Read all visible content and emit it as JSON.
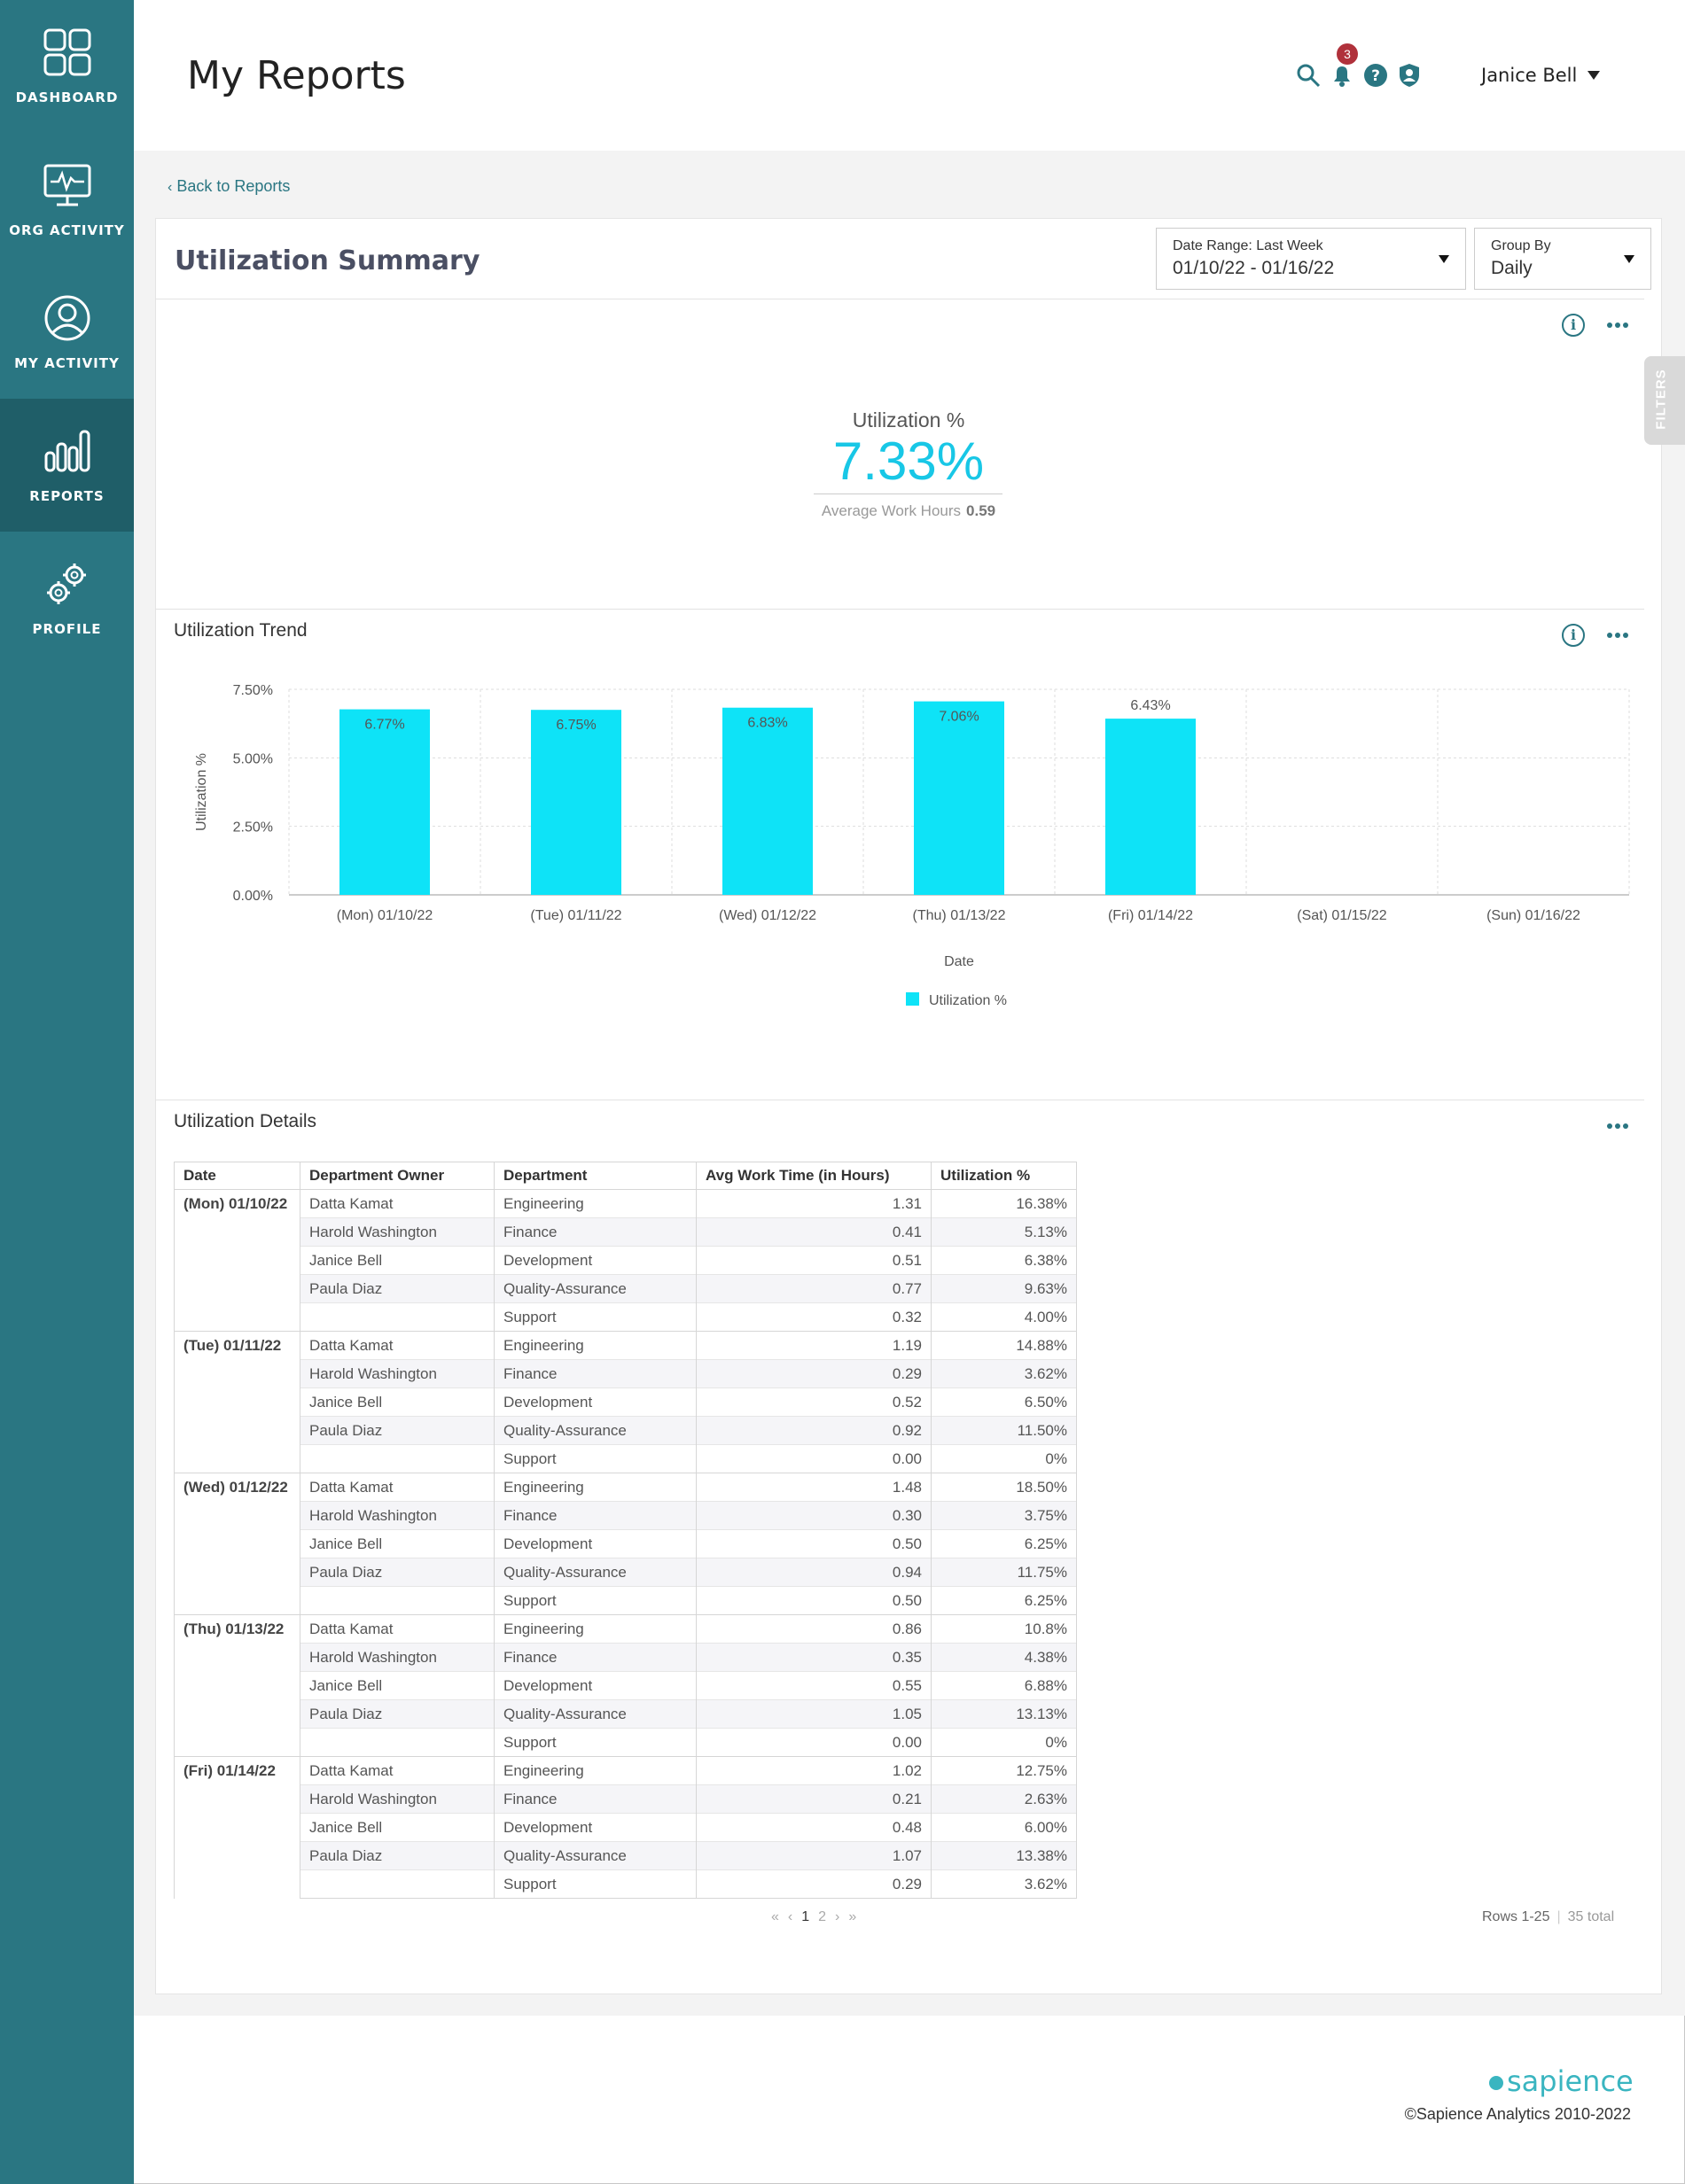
{
  "sidebar": {
    "items": [
      {
        "label": "DASHBOARD",
        "icon": "dashboard-icon"
      },
      {
        "label": "ORG ACTIVITY",
        "icon": "monitor-activity-icon"
      },
      {
        "label": "MY ACTIVITY",
        "icon": "user-icon"
      },
      {
        "label": "REPORTS",
        "icon": "bar-chart-icon",
        "active": true
      },
      {
        "label": "PROFILE",
        "icon": "gears-icon"
      }
    ]
  },
  "header": {
    "title": "My Reports",
    "notification_count": "3",
    "user_name": "Janice Bell",
    "icons": [
      "search-icon",
      "bell-icon",
      "help-icon",
      "shield-icon"
    ]
  },
  "nav": {
    "back_label": "Back to Reports"
  },
  "summary": {
    "title": "Utilization Summary",
    "date_range_label": "Date Range: Last Week",
    "date_range_value": "01/10/22 - 01/16/22",
    "group_by_label": "Group By",
    "group_by_value": "Daily",
    "filters_label": "FILTERS",
    "kpi_label": "Utilization %",
    "kpi_value": "7.33%",
    "kpi_sub_label": "Average Work Hours",
    "kpi_sub_value": "0.59"
  },
  "trend": {
    "title": "Utilization Trend"
  },
  "chart_data": {
    "type": "bar",
    "categories": [
      "(Mon) 01/10/22",
      "(Tue) 01/11/22",
      "(Wed) 01/12/22",
      "(Thu) 01/13/22",
      "(Fri) 01/14/22",
      "(Sat) 01/15/22",
      "(Sun) 01/16/22"
    ],
    "values": [
      6.77,
      6.75,
      6.83,
      7.06,
      6.43,
      null,
      null
    ],
    "data_labels": [
      "6.77%",
      "6.75%",
      "6.83%",
      "7.06%",
      "6.43%",
      "",
      ""
    ],
    "yticks": [
      "0.00%",
      "2.50%",
      "5.00%",
      "7.50%"
    ],
    "ylim": [
      0,
      7.5
    ],
    "xlabel": "Date",
    "ylabel": "Utilization %",
    "legend": [
      "Utilization %"
    ],
    "legend_position": "bottom",
    "grid": true,
    "bar_color": "#0ee3f7"
  },
  "details": {
    "title": "Utilization Details",
    "columns": [
      "Date",
      "Department Owner",
      "Department",
      "Avg Work Time (in Hours)",
      "Utilization %"
    ],
    "groups": [
      {
        "date": "(Mon) 01/10/22",
        "rows": [
          [
            "Datta Kamat",
            "Engineering",
            "1.31",
            "16.38%"
          ],
          [
            "Harold Washington",
            "Finance",
            "0.41",
            "5.13%"
          ],
          [
            "Janice Bell",
            "Development",
            "0.51",
            "6.38%"
          ],
          [
            "Paula Diaz",
            "Quality-Assurance",
            "0.77",
            "9.63%"
          ],
          [
            "",
            "Support",
            "0.32",
            "4.00%"
          ]
        ]
      },
      {
        "date": "(Tue) 01/11/22",
        "rows": [
          [
            "Datta Kamat",
            "Engineering",
            "1.19",
            "14.88%"
          ],
          [
            "Harold Washington",
            "Finance",
            "0.29",
            "3.62%"
          ],
          [
            "Janice Bell",
            "Development",
            "0.52",
            "6.50%"
          ],
          [
            "Paula Diaz",
            "Quality-Assurance",
            "0.92",
            "11.50%"
          ],
          [
            "",
            "Support",
            "0.00",
            "0%"
          ]
        ]
      },
      {
        "date": "(Wed) 01/12/22",
        "rows": [
          [
            "Datta Kamat",
            "Engineering",
            "1.48",
            "18.50%"
          ],
          [
            "Harold Washington",
            "Finance",
            "0.30",
            "3.75%"
          ],
          [
            "Janice Bell",
            "Development",
            "0.50",
            "6.25%"
          ],
          [
            "Paula Diaz",
            "Quality-Assurance",
            "0.94",
            "11.75%"
          ],
          [
            "",
            "Support",
            "0.50",
            "6.25%"
          ]
        ]
      },
      {
        "date": "(Thu) 01/13/22",
        "rows": [
          [
            "Datta Kamat",
            "Engineering",
            "0.86",
            "10.8%"
          ],
          [
            "Harold Washington",
            "Finance",
            "0.35",
            "4.38%"
          ],
          [
            "Janice Bell",
            "Development",
            "0.55",
            "6.88%"
          ],
          [
            "Paula Diaz",
            "Quality-Assurance",
            "1.05",
            "13.13%"
          ],
          [
            "",
            "Support",
            "0.00",
            "0%"
          ]
        ]
      },
      {
        "date": "(Fri) 01/14/22",
        "rows": [
          [
            "Datta Kamat",
            "Engineering",
            "1.02",
            "12.75%"
          ],
          [
            "Harold Washington",
            "Finance",
            "0.21",
            "2.63%"
          ],
          [
            "Janice Bell",
            "Development",
            "0.48",
            "6.00%"
          ],
          [
            "Paula Diaz",
            "Quality-Assurance",
            "1.07",
            "13.38%"
          ],
          [
            "",
            "Support",
            "0.29",
            "3.62%"
          ]
        ]
      }
    ],
    "pager": {
      "pages": [
        "1",
        "2"
      ],
      "current": "1"
    },
    "rows_label": "Rows 1-25",
    "total_label": "35 total"
  },
  "footer": {
    "brand": "sapience",
    "copyright": "©Sapience Analytics 2010-2022"
  },
  "colors": {
    "sidebar": "#2a7682",
    "accent": "#18c7e6",
    "badge": "#b0313b"
  }
}
